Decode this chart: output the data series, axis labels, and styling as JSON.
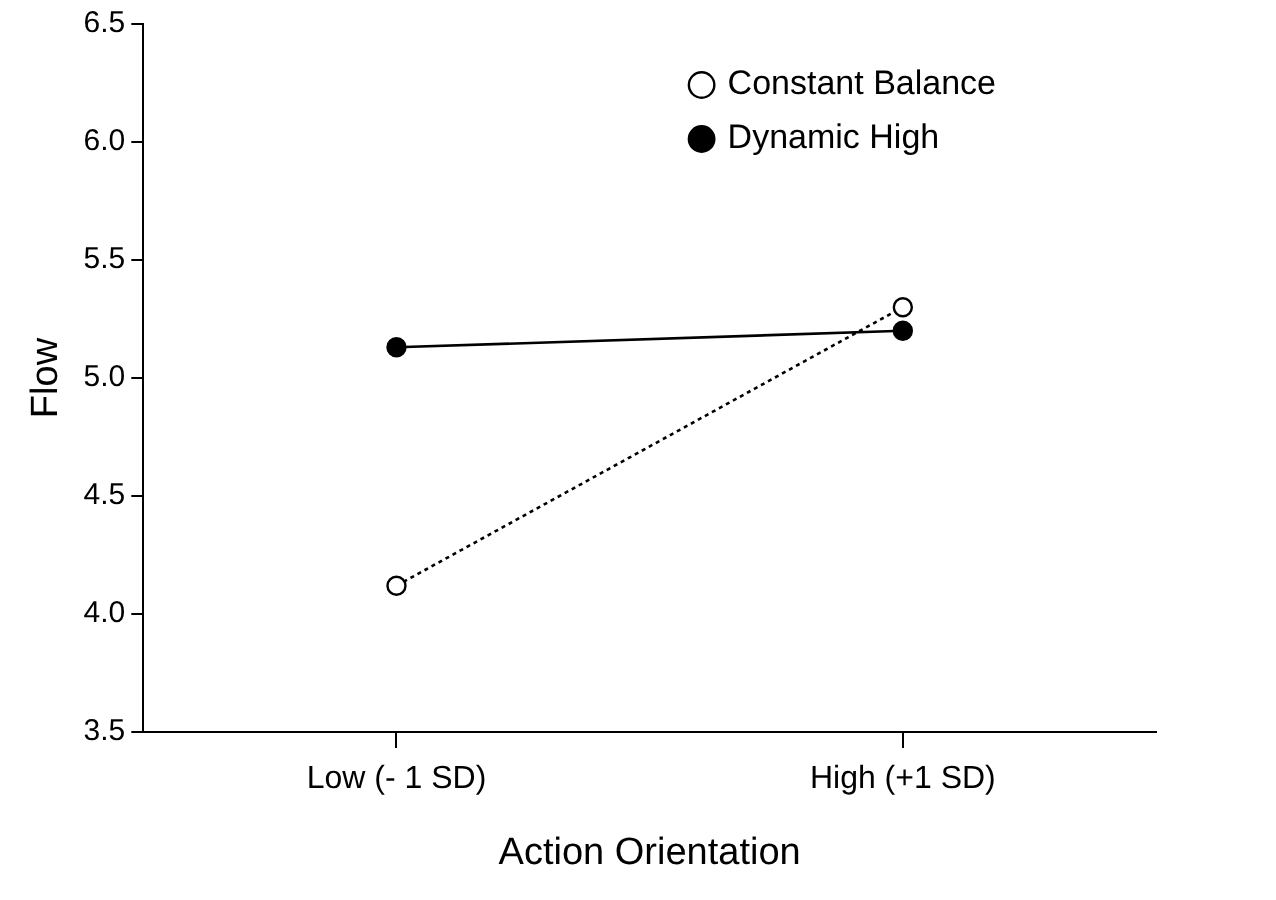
{
  "chart_data": {
    "type": "line",
    "xlabel": "Action Orientation",
    "ylabel": "Flow",
    "categories": [
      "Low (- 1 SD)",
      "High (+1 SD)"
    ],
    "series": [
      {
        "name": "Constant Balance",
        "color": "#000000",
        "values": [
          4.12,
          5.3
        ],
        "line_style": "dotted"
      },
      {
        "name": "Dynamic High",
        "color": "#000000",
        "values": [
          5.13,
          5.2
        ],
        "line_style": "solid"
      }
    ],
    "ylim": [
      3.5,
      6.5
    ],
    "yticks": [
      3.5,
      {
        "value": 4,
        "label": "4.0"
      },
      4.5,
      {
        "value": 5,
        "label": "5.0"
      },
      5.5,
      {
        "value": 6,
        "label": "6.0"
      },
      6.5
    ],
    "grid": false,
    "legend": "top right",
    "marker": "circle"
  }
}
